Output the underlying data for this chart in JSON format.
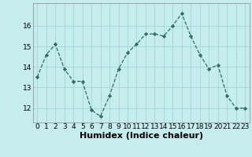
{
  "x": [
    0,
    1,
    2,
    3,
    4,
    5,
    6,
    7,
    8,
    9,
    10,
    11,
    12,
    13,
    14,
    15,
    16,
    17,
    18,
    19,
    20,
    21,
    22,
    23
  ],
  "y": [
    13.5,
    14.6,
    15.1,
    13.9,
    13.3,
    13.3,
    11.9,
    11.6,
    12.6,
    13.9,
    14.7,
    15.1,
    15.6,
    15.6,
    15.5,
    16.0,
    16.6,
    15.5,
    14.6,
    13.9,
    14.1,
    12.6,
    12.0,
    12.0
  ],
  "xlabel": "Humidex (Indice chaleur)",
  "xticks": [
    0,
    1,
    2,
    3,
    4,
    5,
    6,
    7,
    8,
    9,
    10,
    11,
    12,
    13,
    14,
    15,
    16,
    17,
    18,
    19,
    20,
    21,
    22,
    23
  ],
  "yticks": [
    12,
    13,
    14,
    15,
    16
  ],
  "ylim": [
    11.3,
    17.1
  ],
  "xlim": [
    -0.5,
    23.5
  ],
  "line_color": "#2d6e62",
  "marker_color": "#2d6e62",
  "bg_color": "#c5eded",
  "grid_color": "#aad8d8",
  "tick_fontsize": 6.5,
  "xlabel_fontsize": 8.0
}
